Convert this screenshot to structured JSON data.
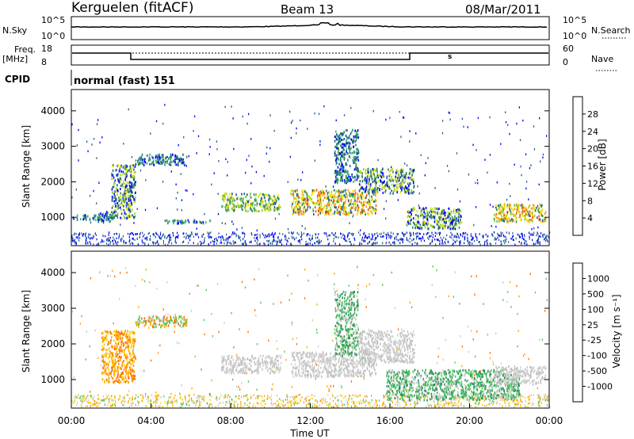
{
  "header": {
    "station": "Kerguelen (fitACF)",
    "beam": "Beam 13",
    "date": "08/Mar/2011"
  },
  "panels": {
    "nsky": {
      "label": "N.Sky",
      "left_ticks": [
        "10^5",
        "10^0"
      ],
      "right_ticks": [
        "10^5",
        "10^0"
      ],
      "right_label": "N.Search"
    },
    "freq": {
      "label_line1": "Freq.",
      "label_line2": "[MHz]",
      "left_ticks": [
        "18",
        "8"
      ],
      "right_ticks": [
        "60",
        "0"
      ],
      "right_label": "Nave",
      "marker": "s"
    },
    "cpid": {
      "label": "CPID",
      "value": "normal (fast) 151"
    }
  },
  "colorbars": {
    "power": {
      "label": "Power [dB]",
      "ticks": [
        "28",
        "24",
        "20",
        "16",
        "12",
        "8",
        "4"
      ],
      "colors": [
        "#ff0000",
        "#ff5500",
        "#ff9900",
        "#ffd200",
        "#e0e000",
        "#9acd32",
        "#3cb371",
        "#2e8b57",
        "#1f5f8f",
        "#0000ff"
      ]
    },
    "velocity": {
      "label": "Velocity [m s⁻¹]",
      "ticks": [
        "1000",
        "500",
        "100",
        "25",
        "-25",
        "-100",
        "-500",
        "-1000"
      ],
      "colors": [
        "#1a237e",
        "#1e5ca8",
        "#2e8b57",
        "#4fc84f",
        "#c8c8c8",
        "#c8c8c8",
        "#ffa500",
        "#ff6a00",
        "#ff2a00",
        "#e00000"
      ]
    }
  },
  "chart_data": [
    {
      "type": "heatmap",
      "name": "power",
      "ylabel": "Slant Range [km]",
      "ylim": [
        200,
        4600
      ],
      "yticks": [
        1000,
        2000,
        3000,
        4000
      ],
      "xlim": [
        0,
        24
      ],
      "patches": [
        {
          "t0": 1.3,
          "t1": 2.0,
          "r0": 900,
          "r1": 1200,
          "c": 1
        },
        {
          "t0": 2.0,
          "t1": 3.2,
          "r0": 1000,
          "r1": 2500,
          "c": 2
        },
        {
          "t0": 3.2,
          "t1": 5.8,
          "r0": 2500,
          "r1": 2800,
          "c": 1
        },
        {
          "t0": 0.0,
          "t1": 2.2,
          "r0": 950,
          "r1": 1100,
          "c": 1
        },
        {
          "t0": 4.5,
          "t1": 7.0,
          "r0": 850,
          "r1": 950,
          "c": 1
        },
        {
          "t0": 7.5,
          "t1": 10.5,
          "r0": 1200,
          "r1": 1700,
          "c": 3
        },
        {
          "t0": 11.0,
          "t1": 15.3,
          "r0": 1100,
          "r1": 1800,
          "c": 4
        },
        {
          "t0": 13.2,
          "t1": 14.4,
          "r0": 2000,
          "r1": 3500,
          "c": 1
        },
        {
          "t0": 14.4,
          "t1": 17.2,
          "r0": 1700,
          "r1": 2400,
          "c": 2
        },
        {
          "t0": 16.8,
          "t1": 19.6,
          "r0": 700,
          "r1": 1300,
          "c": 2
        },
        {
          "t0": 21.2,
          "t1": 23.8,
          "r0": 900,
          "r1": 1400,
          "c": 4
        }
      ]
    },
    {
      "type": "heatmap",
      "name": "velocity",
      "ylabel": "Slant Range [km]",
      "xlabel": "Time UT",
      "ylim": [
        200,
        4600
      ],
      "yticks": [
        1000,
        2000,
        3000,
        4000
      ],
      "xlim": [
        0,
        24
      ],
      "xticks": [
        "00:00",
        "04:00",
        "08:00",
        "12:00",
        "16:00",
        "20:00",
        "00:00"
      ],
      "patches": [
        {
          "t0": 1.5,
          "t1": 3.2,
          "r0": 950,
          "r1": 2400,
          "c": "orange"
        },
        {
          "t0": 3.2,
          "t1": 5.8,
          "r0": 2500,
          "r1": 2800,
          "c": "mixed"
        },
        {
          "t0": 7.5,
          "t1": 10.5,
          "r0": 1200,
          "r1": 1700,
          "c": "grey"
        },
        {
          "t0": 11.0,
          "t1": 15.3,
          "r0": 1100,
          "r1": 1800,
          "c": "grey"
        },
        {
          "t0": 13.2,
          "t1": 14.4,
          "r0": 1700,
          "r1": 3500,
          "c": "green"
        },
        {
          "t0": 14.4,
          "t1": 17.2,
          "r0": 1500,
          "r1": 2400,
          "c": "grey"
        },
        {
          "t0": 15.8,
          "t1": 22.5,
          "r0": 450,
          "r1": 1300,
          "c": "green"
        },
        {
          "t0": 21.2,
          "t1": 23.8,
          "r0": 900,
          "r1": 1400,
          "c": "grey"
        }
      ]
    }
  ]
}
